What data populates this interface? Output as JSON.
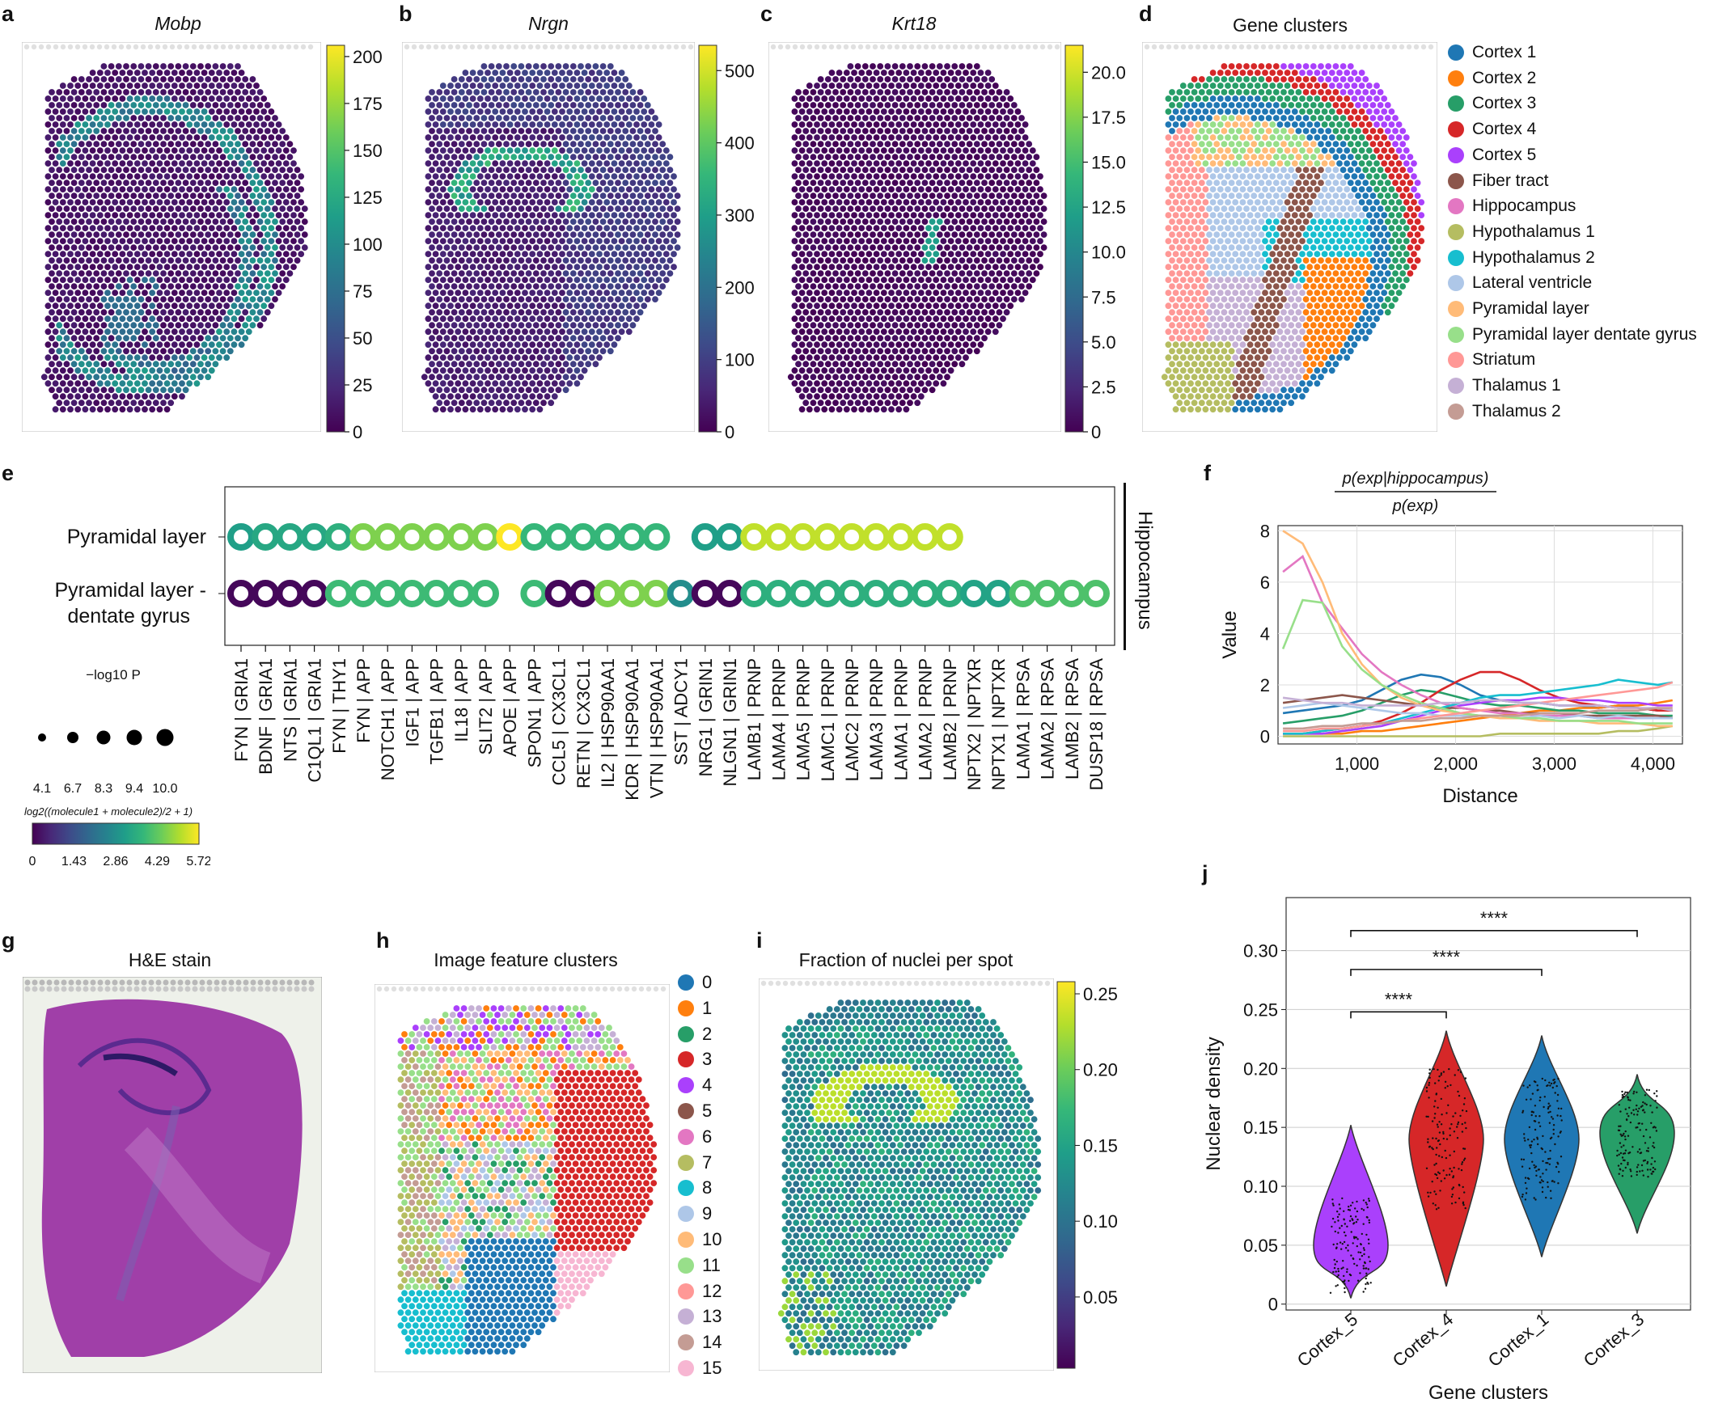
{
  "panels": {
    "a": {
      "label": "a",
      "title": "Mobp",
      "cbar_ticks": [
        "200",
        "175",
        "150",
        "125",
        "100",
        "75",
        "50",
        "25",
        "0"
      ],
      "cbar_max": 206
    },
    "b": {
      "label": "b",
      "title": "Nrgn",
      "cbar_ticks": [
        "500",
        "400",
        "300",
        "200",
        "100",
        "0"
      ],
      "cbar_max": 535
    },
    "c": {
      "label": "c",
      "title": "Krt18",
      "cbar_ticks": [
        "20.0",
        "17.5",
        "15.0",
        "12.5",
        "10.0",
        "7.5",
        "5.0",
        "2.5",
        "0"
      ],
      "cbar_max": 21.5
    },
    "d": {
      "label": "d",
      "title": "Gene clusters",
      "legend": [
        {
          "name": "Cortex 1",
          "color": "#1f77b4"
        },
        {
          "name": "Cortex 2",
          "color": "#ff7f0e"
        },
        {
          "name": "Cortex 3",
          "color": "#279e68"
        },
        {
          "name": "Cortex 4",
          "color": "#d62728"
        },
        {
          "name": "Cortex 5",
          "color": "#aa40fc"
        },
        {
          "name": "Fiber tract",
          "color": "#8c564b"
        },
        {
          "name": "Hippocampus",
          "color": "#e377c2"
        },
        {
          "name": "Hypothalamus 1",
          "color": "#b5bd61"
        },
        {
          "name": "Hypothalamus 2",
          "color": "#17becf"
        },
        {
          "name": "Lateral ventricle",
          "color": "#aec7e8"
        },
        {
          "name": "Pyramidal layer",
          "color": "#ffbb78"
        },
        {
          "name": "Pyramidal layer dentate gyrus",
          "color": "#98df8a"
        },
        {
          "name": "Striatum",
          "color": "#ff9896"
        },
        {
          "name": "Thalamus 1",
          "color": "#c5b0d5"
        },
        {
          "name": "Thalamus 2",
          "color": "#c49c94"
        }
      ]
    },
    "e": {
      "label": "e",
      "rows": [
        "Pyramidal layer",
        "Pyramidal layer -",
        "dentate gyrus"
      ],
      "side_label": "Hippocampus",
      "columns": [
        "FYN | GRIA1",
        "BDNF | GRIA1",
        "NTS | GRIA1",
        "C1QL1 | GRIA1",
        "FYN | THY1",
        "FYN | APP",
        "NOTCH1 | APP",
        "IGF1 | APP",
        "TGFB1 | APP",
        "IL18 | APP",
        "SLIT2 | APP",
        "APOE | APP",
        "SPON1 | APP",
        "CCL5 | CX3CL1",
        "RETN | CX3CL1",
        "IL2 | HSP90AA1",
        "KDR | HSP90AA1",
        "VTN | HSP90AA1",
        "SST | ADCY1",
        "NRG1 | GRIN1",
        "NLGN1 | GRIN1",
        "LAMB1 | PRNP",
        "LAMA4 | PRNP",
        "LAMA5 | PRNP",
        "LAMC1 | PRNP",
        "LAMC2 | PRNP",
        "LAMA3 | PRNP",
        "LAMA1 | PRNP",
        "LAMA2 | PRNP",
        "LAMB2 | PRNP",
        "NPTX2 | NPTXR",
        "NPTX1 | NPTXR",
        "LAMA1 | RPSA",
        "LAMA2 | RPSA",
        "LAMB2 | RPSA",
        "DUSP18 | RPSA"
      ],
      "row1_values": [
        3.2,
        3.4,
        3.4,
        3.4,
        3.6,
        4.6,
        4.6,
        4.6,
        4.6,
        4.6,
        4.6,
        5.72,
        3.8,
        3.8,
        3.8,
        3.8,
        3.8,
        3.8,
        null,
        3.2,
        3.2,
        5.2,
        5.2,
        5.2,
        5.2,
        5.2,
        5.2,
        5.2,
        5.2,
        5.2,
        null,
        null,
        null,
        null,
        null,
        null
      ],
      "row2_values": [
        0.1,
        0.1,
        0.1,
        0.1,
        3.9,
        3.9,
        3.9,
        3.9,
        3.9,
        3.9,
        3.9,
        null,
        3.9,
        0.1,
        0.1,
        4.6,
        4.6,
        4.6,
        2.8,
        0.1,
        0.1,
        3.6,
        3.6,
        3.6,
        3.6,
        3.6,
        3.6,
        3.6,
        3.6,
        3.6,
        3.3,
        3.3,
        4.1,
        4.1,
        4.1,
        4.1
      ],
      "size_legend_title": "−log10 P",
      "size_legend_values": [
        "4.1",
        "6.7",
        "8.3",
        "9.4",
        "10.0"
      ],
      "color_legend_title": "log2((molecule1 + molecule2)/2 + 1)",
      "color_legend_ticks": [
        "0",
        "1.43",
        "2.86",
        "4.29",
        "5.72"
      ]
    },
    "f": {
      "label": "f",
      "title_num": "p(exp|hippocampus)",
      "title_den": "p(exp)"
    },
    "g": {
      "label": "g",
      "title": "H&E stain"
    },
    "h": {
      "label": "h",
      "title": "Image feature clusters",
      "legend": [
        {
          "name": "0",
          "color": "#1f77b4"
        },
        {
          "name": "1",
          "color": "#ff7f0e"
        },
        {
          "name": "2",
          "color": "#279e68"
        },
        {
          "name": "3",
          "color": "#d62728"
        },
        {
          "name": "4",
          "color": "#aa40fc"
        },
        {
          "name": "5",
          "color": "#8c564b"
        },
        {
          "name": "6",
          "color": "#e377c2"
        },
        {
          "name": "7",
          "color": "#b5bd61"
        },
        {
          "name": "8",
          "color": "#17becf"
        },
        {
          "name": "9",
          "color": "#aec7e8"
        },
        {
          "name": "10",
          "color": "#ffbb78"
        },
        {
          "name": "11",
          "color": "#98df8a"
        },
        {
          "name": "12",
          "color": "#ff9896"
        },
        {
          "name": "13",
          "color": "#c5b0d5"
        },
        {
          "name": "14",
          "color": "#c49c94"
        },
        {
          "name": "15",
          "color": "#f7b6d2"
        }
      ]
    },
    "i": {
      "label": "i",
      "title": "Fraction of nuclei per spot",
      "cbar_ticks": [
        "0.25",
        "0.20",
        "0.15",
        "0.10",
        "0.05"
      ]
    },
    "j": {
      "label": "j"
    }
  },
  "chart_data": [
    {
      "type": "line",
      "panel": "f",
      "title": "p(exp|hippocampus) / p(exp)",
      "xlabel": "Distance",
      "ylabel": "Value",
      "xlim": [
        200,
        4300
      ],
      "ylim": [
        -0.3,
        8.2
      ],
      "xticks": [
        "1,000",
        "2,000",
        "3,000",
        "4,000"
      ],
      "yticks": [
        "0",
        "2",
        "4",
        "6",
        "8"
      ],
      "x": [
        250,
        450,
        650,
        850,
        1050,
        1250,
        1450,
        1650,
        1850,
        2050,
        2250,
        2450,
        2650,
        2850,
        3050,
        3250,
        3450,
        3650,
        3850,
        4050,
        4200
      ],
      "series": [
        {
          "name": "Cortex 1",
          "color": "#1f77b4",
          "values": [
            0.9,
            1.0,
            1.1,
            1.2,
            1.4,
            1.8,
            2.2,
            2.4,
            2.3,
            2.0,
            1.6,
            1.4,
            1.3,
            1.3,
            1.2,
            1.2,
            1.1,
            1.2,
            1.1,
            1.0,
            1.0
          ]
        },
        {
          "name": "Cortex 2",
          "color": "#ff7f0e",
          "values": [
            0.1,
            0.1,
            0.1,
            0.1,
            0.2,
            0.2,
            0.3,
            0.4,
            0.5,
            0.6,
            0.7,
            0.8,
            0.9,
            1.0,
            1.0,
            1.1,
            1.1,
            1.2,
            1.2,
            1.3,
            1.4
          ]
        },
        {
          "name": "Cortex 3",
          "color": "#279e68",
          "values": [
            0.5,
            0.6,
            0.7,
            0.8,
            1.0,
            1.3,
            1.6,
            1.8,
            1.7,
            1.5,
            1.3,
            1.2,
            1.2,
            1.1,
            1.0,
            1.0,
            0.9,
            0.9,
            0.9,
            0.8,
            0.8
          ]
        },
        {
          "name": "Cortex 4",
          "color": "#d62728",
          "values": [
            0.1,
            0.1,
            0.2,
            0.3,
            0.4,
            0.6,
            0.9,
            1.3,
            1.8,
            2.2,
            2.5,
            2.5,
            2.2,
            1.8,
            1.5,
            1.3,
            1.2,
            1.1,
            1.1,
            1.0,
            1.0
          ]
        },
        {
          "name": "Cortex 5",
          "color": "#aa40fc",
          "values": [
            0.1,
            0.1,
            0.1,
            0.2,
            0.3,
            0.4,
            0.6,
            0.8,
            1.0,
            1.2,
            1.3,
            1.4,
            1.4,
            1.5,
            1.5,
            1.4,
            1.4,
            1.3,
            1.3,
            1.2,
            1.2
          ]
        },
        {
          "name": "Fiber tract",
          "color": "#8c564b",
          "values": [
            1.3,
            1.4,
            1.5,
            1.6,
            1.5,
            1.4,
            1.3,
            1.2,
            1.1,
            1.1,
            1.0,
            1.0,
            0.9,
            0.9,
            0.9,
            0.8,
            0.8,
            0.8,
            0.8,
            0.8,
            0.7
          ]
        },
        {
          "name": "Hippocampus",
          "color": "#e377c2",
          "values": [
            6.4,
            7.0,
            5.2,
            4.2,
            3.2,
            2.5,
            2.0,
            1.6,
            1.3,
            1.1,
            1.0,
            0.9,
            0.9,
            0.8,
            0.8,
            0.8,
            0.7,
            0.7,
            0.7,
            0.7,
            0.7
          ]
        },
        {
          "name": "Hypothalamus 1",
          "color": "#b5bd61",
          "values": [
            0.0,
            0.0,
            0.0,
            0.0,
            0.0,
            0.0,
            0.0,
            0.0,
            0.0,
            0.0,
            0.0,
            0.1,
            0.1,
            0.1,
            0.1,
            0.1,
            0.1,
            0.2,
            0.2,
            0.3,
            0.4
          ]
        },
        {
          "name": "Hypothalamus 2",
          "color": "#17becf",
          "values": [
            0.1,
            0.1,
            0.2,
            0.3,
            0.4,
            0.5,
            0.7,
            0.9,
            1.1,
            1.3,
            1.5,
            1.6,
            1.6,
            1.7,
            1.8,
            1.9,
            2.0,
            2.2,
            2.1,
            2.0,
            2.1
          ]
        },
        {
          "name": "Lateral ventricle",
          "color": "#aec7e8",
          "values": [
            1.1,
            1.2,
            1.3,
            1.2,
            1.1,
            1.0,
            0.9,
            0.9,
            0.8,
            0.8,
            0.8,
            0.8,
            0.7,
            0.8,
            0.7,
            0.8,
            0.7,
            0.8,
            0.7,
            0.7,
            0.7
          ]
        },
        {
          "name": "Pyramidal layer",
          "color": "#ffbb78",
          "values": [
            8.0,
            7.5,
            6.0,
            4.0,
            2.8,
            2.0,
            1.5,
            1.2,
            1.0,
            0.9,
            0.8,
            0.7,
            0.7,
            0.6,
            0.6,
            0.6,
            0.5,
            0.5,
            0.5,
            0.4,
            0.4
          ]
        },
        {
          "name": "Pyramidal layer dentate gyrus",
          "color": "#98df8a",
          "values": [
            3.4,
            5.3,
            5.2,
            3.5,
            2.6,
            2.0,
            1.6,
            1.3,
            1.1,
            0.9,
            0.8,
            0.8,
            0.7,
            0.7,
            0.6,
            0.6,
            0.6,
            0.6,
            0.5,
            0.5,
            0.5
          ]
        },
        {
          "name": "Striatum",
          "color": "#ff9896",
          "values": [
            0.2,
            0.2,
            0.3,
            0.3,
            0.4,
            0.5,
            0.6,
            0.7,
            0.8,
            0.9,
            1.0,
            1.1,
            1.2,
            1.3,
            1.4,
            1.5,
            1.6,
            1.7,
            1.8,
            1.9,
            2.1
          ]
        },
        {
          "name": "Thalamus 1",
          "color": "#c5b0d5",
          "values": [
            1.5,
            1.4,
            1.3,
            1.3,
            1.2,
            1.2,
            1.2,
            1.2,
            1.3,
            1.3,
            1.4,
            1.4,
            1.3,
            1.3,
            1.2,
            1.2,
            1.2,
            1.1,
            1.1,
            1.1,
            1.0
          ]
        },
        {
          "name": "Thalamus 2",
          "color": "#c49c94",
          "values": [
            0.3,
            0.3,
            0.4,
            0.4,
            0.5,
            0.5,
            0.6,
            0.6,
            0.7,
            0.7,
            0.8,
            0.8,
            0.8,
            0.9,
            0.9,
            0.9,
            1.0,
            1.0,
            1.0,
            1.1,
            1.1
          ]
        }
      ]
    },
    {
      "type": "violin",
      "panel": "j",
      "xlabel": "Gene clusters",
      "ylabel": "Nuclear density",
      "ylim": [
        -0.005,
        0.345
      ],
      "yticks": [
        "0",
        "0.05",
        "0.10",
        "0.15",
        "0.20",
        "0.25",
        "0.30"
      ],
      "categories": [
        "Cortex_5",
        "Cortex_4",
        "Cortex_1",
        "Cortex_3"
      ],
      "colors": [
        "#aa40fc",
        "#d62728",
        "#1f77b4",
        "#279e68"
      ],
      "ranges": [
        [
          0.005,
          0.152
        ],
        [
          0.015,
          0.232
        ],
        [
          0.04,
          0.228
        ],
        [
          0.06,
          0.195
        ]
      ],
      "medians": [
        0.05,
        0.14,
        0.14,
        0.145
      ],
      "significance": [
        {
          "from": "Cortex_5",
          "to": "Cortex_4",
          "label": "****"
        },
        {
          "from": "Cortex_5",
          "to": "Cortex_1",
          "label": "****"
        },
        {
          "from": "Cortex_5",
          "to": "Cortex_3",
          "label": "****"
        }
      ]
    }
  ]
}
